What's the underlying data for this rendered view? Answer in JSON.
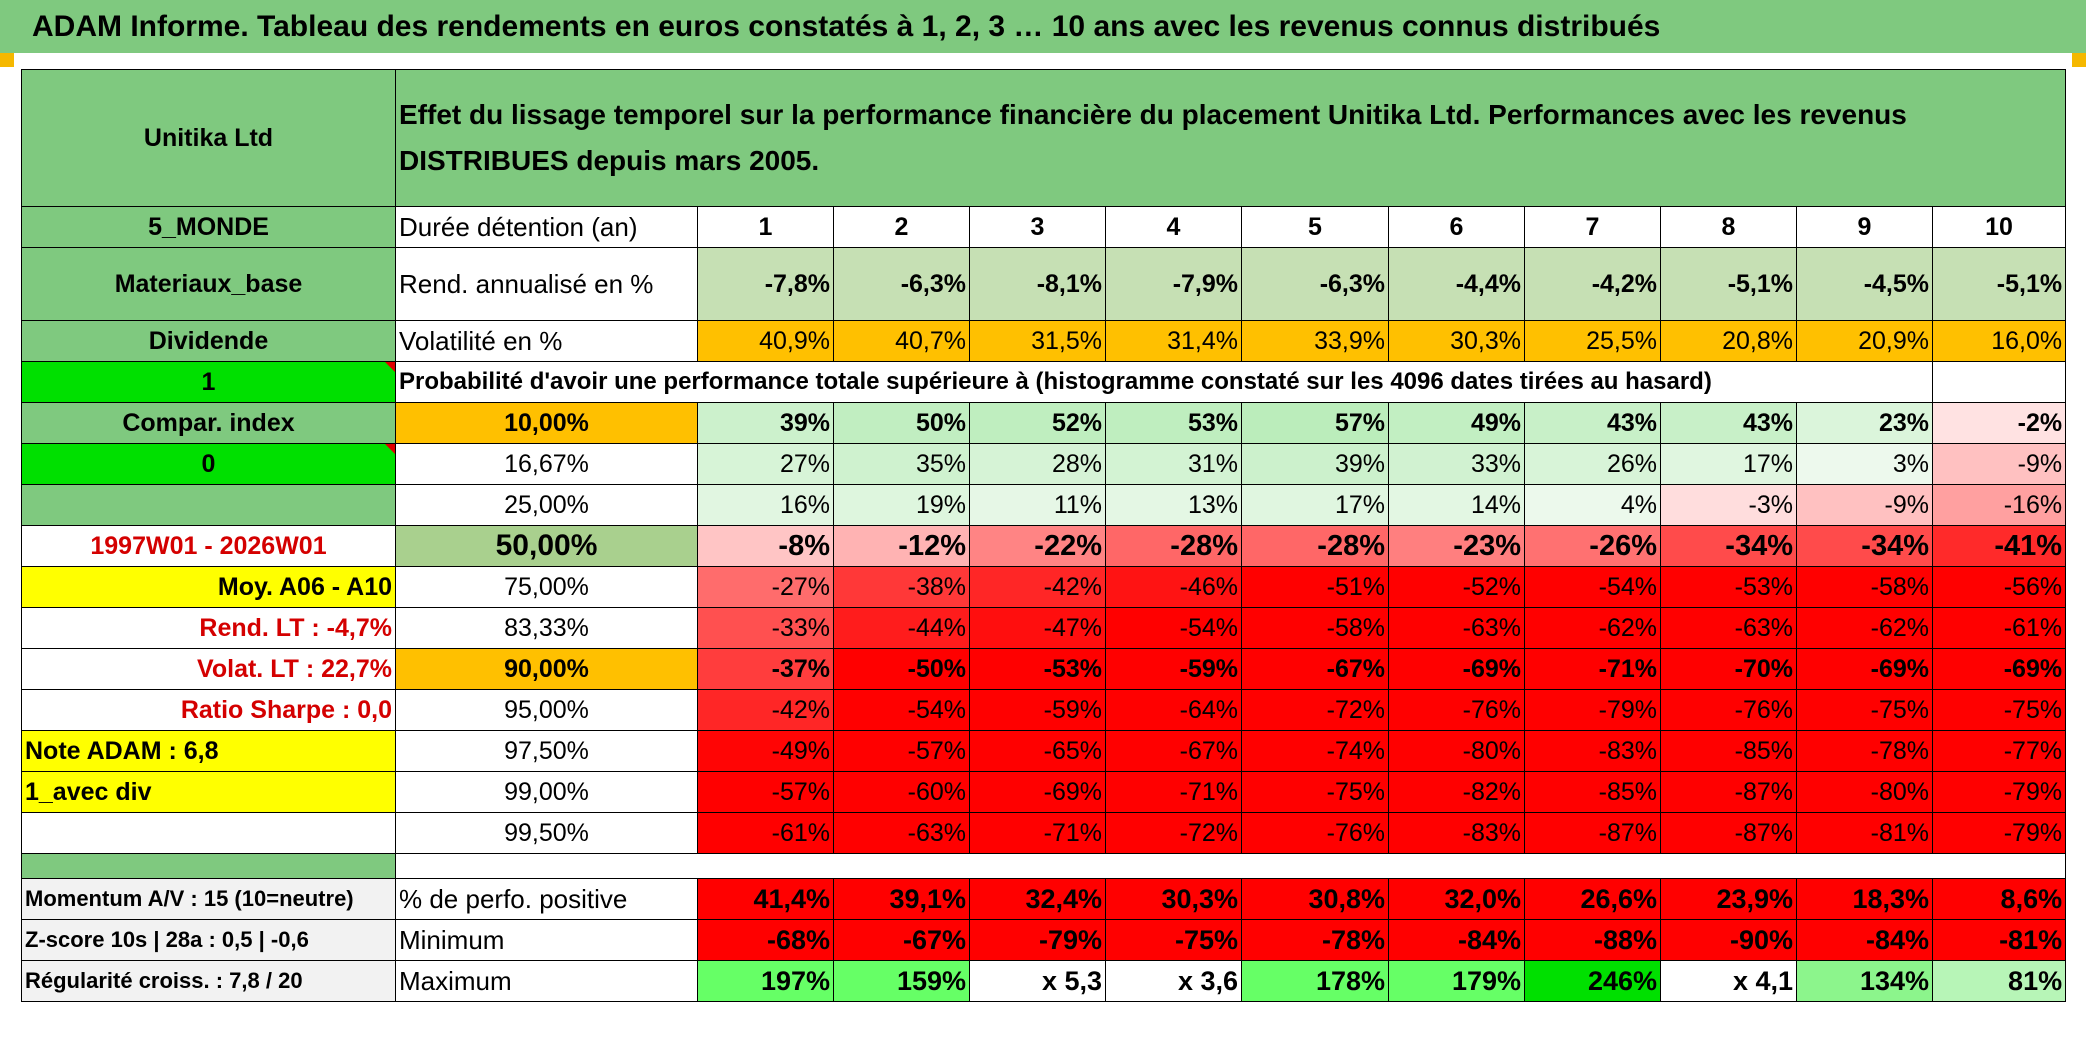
{
  "banner": "ADAM Informe. Tableau des rendements en euros constatés à 1, 2, 3 … 10 ans avec les revenus connus distribués",
  "sidebar": {
    "company": "Unitika Ltd",
    "zone": "5_MONDE",
    "sector": "Materiaux_base",
    "type": "Dividende",
    "flag1": "1",
    "compar": "Compar. index",
    "flag0": "0",
    "period": "1997W01 - 2026W01",
    "moy": "Moy. A06 - A10",
    "rend_lt": "Rend. LT :    -4,7%",
    "volat_lt": "Volat. LT :    22,7%",
    "sharpe": "Ratio Sharpe :    0,0",
    "note": "Note ADAM : 6,8",
    "mode": "1_avec div",
    "momentum": "Momentum A/V : 15 (10=neutre)",
    "zscore": "Z-score 10s | 28a : 0,5 | -0,6",
    "regularite": "Régularité croiss. : 7,8 / 20"
  },
  "header_title": "Effet du lissage temporel sur la performance financière du placement Unitika Ltd. Performances avec les revenus DISTRIBUES depuis mars 2005.",
  "duration_label": "Durée détention (an)",
  "years": [
    "1",
    "2",
    "3",
    "4",
    "5",
    "6",
    "7",
    "8",
    "9",
    "10"
  ],
  "rend_label": "Rend. annualisé en %",
  "rend": [
    "-7,8%",
    "-6,3%",
    "-8,1%",
    "-7,9%",
    "-6,3%",
    "-4,4%",
    "-4,2%",
    "-5,1%",
    "-4,5%",
    "-5,1%"
  ],
  "vol_label": "Volatilité en %",
  "vol": [
    "40,9%",
    "40,7%",
    "31,5%",
    "31,4%",
    "33,9%",
    "30,3%",
    "25,5%",
    "20,8%",
    "20,9%",
    "16,0%"
  ],
  "prob_label": "Probabilité d'avoir une performance totale supérieure à (histogramme constaté sur les 4096 dates tirées au hasard)",
  "quantiles": [
    {
      "q": "10,00%",
      "vals": [
        "39%",
        "50%",
        "52%",
        "53%",
        "57%",
        "49%",
        "43%",
        "43%",
        "23%",
        "-2%"
      ],
      "fill": [
        39,
        50,
        52,
        53,
        57,
        49,
        43,
        43,
        23,
        -2
      ]
    },
    {
      "q": "16,67%",
      "vals": [
        "27%",
        "35%",
        "28%",
        "31%",
        "39%",
        "33%",
        "26%",
        "17%",
        "3%",
        "-9%"
      ],
      "fill": [
        27,
        35,
        28,
        31,
        39,
        33,
        26,
        17,
        3,
        -9
      ]
    },
    {
      "q": "25,00%",
      "vals": [
        "16%",
        "19%",
        "11%",
        "13%",
        "17%",
        "14%",
        "4%",
        "-3%",
        "-9%",
        "-16%"
      ],
      "fill": [
        16,
        19,
        11,
        13,
        17,
        14,
        4,
        -3,
        -9,
        -16
      ]
    },
    {
      "q": "50,00%",
      "vals": [
        "-8%",
        "-12%",
        "-22%",
        "-28%",
        "-28%",
        "-23%",
        "-26%",
        "-34%",
        "-34%",
        "-41%"
      ],
      "fill": [
        -8,
        -12,
        -22,
        -28,
        -28,
        -23,
        -26,
        -34,
        -34,
        -41
      ]
    },
    {
      "q": "75,00%",
      "vals": [
        "-27%",
        "-38%",
        "-42%",
        "-46%",
        "-51%",
        "-52%",
        "-54%",
        "-53%",
        "-58%",
        "-56%"
      ],
      "fill": [
        -27,
        -38,
        -42,
        -46,
        -51,
        -52,
        -54,
        -53,
        -58,
        -56
      ]
    },
    {
      "q": "83,33%",
      "vals": [
        "-33%",
        "-44%",
        "-47%",
        "-54%",
        "-58%",
        "-63%",
        "-62%",
        "-63%",
        "-62%",
        "-61%"
      ],
      "fill": [
        -33,
        -44,
        -47,
        -54,
        -58,
        -63,
        -62,
        -63,
        -62,
        -61
      ]
    },
    {
      "q": "90,00%",
      "vals": [
        "-37%",
        "-50%",
        "-53%",
        "-59%",
        "-67%",
        "-69%",
        "-71%",
        "-70%",
        "-69%",
        "-69%"
      ],
      "fill": [
        -37,
        -50,
        -53,
        -59,
        -67,
        -69,
        -71,
        -70,
        -69,
        -69
      ]
    },
    {
      "q": "95,00%",
      "vals": [
        "-42%",
        "-54%",
        "-59%",
        "-64%",
        "-72%",
        "-76%",
        "-79%",
        "-76%",
        "-75%",
        "-75%"
      ],
      "fill": [
        -42,
        -54,
        -59,
        -64,
        -72,
        -76,
        -79,
        -76,
        -75,
        -75
      ]
    },
    {
      "q": "97,50%",
      "vals": [
        "-49%",
        "-57%",
        "-65%",
        "-67%",
        "-74%",
        "-80%",
        "-83%",
        "-85%",
        "-78%",
        "-77%"
      ],
      "fill": [
        -49,
        -57,
        -65,
        -67,
        -74,
        -80,
        -83,
        -85,
        -78,
        -77
      ]
    },
    {
      "q": "99,00%",
      "vals": [
        "-57%",
        "-60%",
        "-69%",
        "-71%",
        "-75%",
        "-82%",
        "-85%",
        "-87%",
        "-80%",
        "-79%"
      ],
      "fill": [
        -57,
        -60,
        -69,
        -71,
        -75,
        -82,
        -85,
        -87,
        -80,
        -79
      ]
    },
    {
      "q": "99,50%",
      "vals": [
        "-61%",
        "-63%",
        "-71%",
        "-72%",
        "-76%",
        "-83%",
        "-87%",
        "-87%",
        "-81%",
        "-79%"
      ],
      "fill": [
        -61,
        -63,
        -71,
        -72,
        -76,
        -83,
        -87,
        -87,
        -81,
        -79
      ]
    }
  ],
  "pos_label": "% de perfo. positive",
  "pos": [
    "41,4%",
    "39,1%",
    "32,4%",
    "30,3%",
    "30,8%",
    "32,0%",
    "26,6%",
    "23,9%",
    "18,3%",
    "8,6%"
  ],
  "min_label": "Minimum",
  "min": [
    "-68%",
    "-67%",
    "-79%",
    "-75%",
    "-78%",
    "-84%",
    "-88%",
    "-90%",
    "-84%",
    "-81%"
  ],
  "max_label": "Maximum",
  "max": [
    "197%",
    "159%",
    "x 5,3",
    "x 3,6",
    "178%",
    "179%",
    "246%",
    "x 4,1",
    "134%",
    "81%"
  ],
  "max_fill": [
    197,
    159,
    530,
    360,
    178,
    179,
    246,
    410,
    134,
    81
  ],
  "colors": {
    "green": "#7fc97f",
    "yellow": "#ffff00",
    "orange": "#ffc000",
    "lime": "#00e000",
    "red": "#ff0000",
    "text_red": "#d40000",
    "pale_green": "#c6e0b4"
  }
}
